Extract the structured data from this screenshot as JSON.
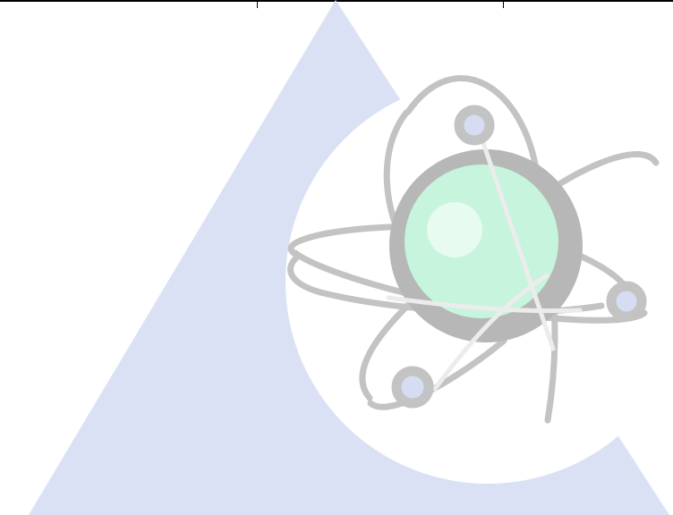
{
  "logo": {
    "icon": "atom-triangle-logo-icon",
    "colors": {
      "triangle": "#dbe1f5",
      "orbit": "#c3c3c3",
      "nucleus_ring": "#b7b7b7",
      "nucleus": "#c7f4dd",
      "nucleus_highlight": "#e7fbf0",
      "electron": "#d6ddf3"
    }
  }
}
